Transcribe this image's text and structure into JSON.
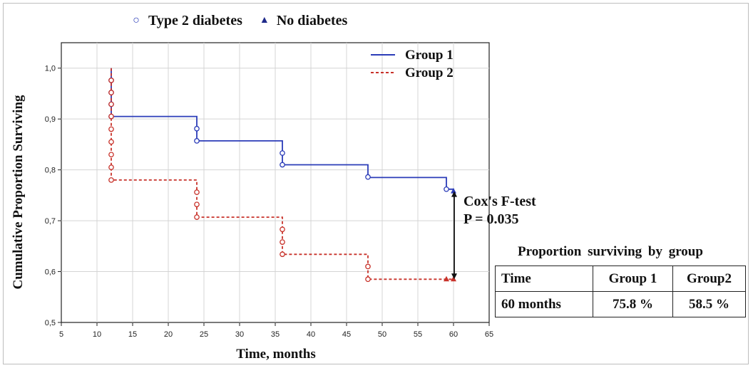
{
  "legend": {
    "markers": [
      {
        "symbol": "○",
        "label": "Type 2 diabetes",
        "icon": "open-circle-icon"
      },
      {
        "symbol": "▲",
        "label": "No diabetes",
        "icon": "filled-triangle-icon"
      }
    ],
    "groups": [
      {
        "label": "Group 1",
        "color": "#2b3cb8",
        "style": "solid"
      },
      {
        "label": "Group 2",
        "color": "#c8322a",
        "style": "dashed"
      }
    ]
  },
  "annotation": {
    "test_label": "Cox's F-test",
    "p_value": "P = 0.035"
  },
  "summary": {
    "title": "Proportion surviving by group",
    "header": [
      "Time",
      "Group 1",
      "Group2"
    ],
    "rows": [
      [
        "60 months",
        "75.8 %",
        "58.5 %"
      ]
    ]
  },
  "chart_data": {
    "type": "line",
    "title": "",
    "xlabel": "Time, months",
    "ylabel": "Cumulative Proportion Surviving",
    "xlim": [
      5,
      65
    ],
    "ylim": [
      0.5,
      1.05
    ],
    "xticks": [
      5,
      10,
      15,
      20,
      25,
      30,
      35,
      40,
      45,
      50,
      55,
      60,
      65
    ],
    "yticks": [
      0.5,
      0.6,
      0.7,
      0.8,
      0.9,
      1.0
    ],
    "ytick_labels": [
      "0,5",
      "0,6",
      "0,7",
      "0,8",
      "0,9",
      "1,0"
    ],
    "grid": true,
    "legend_position": "top-right",
    "series": [
      {
        "name": "Group 1",
        "color": "#2b3cb8",
        "style": "solid",
        "steps": [
          [
            12,
            1.0
          ],
          [
            12,
            0.905
          ],
          [
            24,
            0.905
          ],
          [
            24,
            0.857
          ],
          [
            36,
            0.857
          ],
          [
            36,
            0.81
          ],
          [
            48,
            0.81
          ],
          [
            48,
            0.785
          ],
          [
            59,
            0.785
          ],
          [
            59,
            0.762
          ],
          [
            60,
            0.762
          ],
          [
            60,
            0.758
          ]
        ],
        "censored_circles": [
          [
            12,
            0.976
          ],
          [
            12,
            0.952
          ],
          [
            12,
            0.929
          ],
          [
            12,
            0.905
          ],
          [
            24,
            0.881
          ],
          [
            24,
            0.857
          ],
          [
            36,
            0.833
          ],
          [
            36,
            0.81
          ],
          [
            48,
            0.786
          ],
          [
            59,
            0.762
          ]
        ],
        "triangles": [
          [
            60,
            0.758
          ]
        ]
      },
      {
        "name": "Group 2",
        "color": "#c8322a",
        "style": "dashed",
        "steps": [
          [
            12,
            1.0
          ],
          [
            12,
            0.78
          ],
          [
            24,
            0.78
          ],
          [
            24,
            0.707
          ],
          [
            36,
            0.707
          ],
          [
            36,
            0.634
          ],
          [
            48,
            0.634
          ],
          [
            48,
            0.585
          ],
          [
            60,
            0.585
          ]
        ],
        "censored_circles": [
          [
            12,
            0.976
          ],
          [
            12,
            0.952
          ],
          [
            12,
            0.929
          ],
          [
            12,
            0.905
          ],
          [
            12,
            0.88
          ],
          [
            12,
            0.855
          ],
          [
            12,
            0.83
          ],
          [
            12,
            0.805
          ],
          [
            12,
            0.78
          ],
          [
            24,
            0.756
          ],
          [
            24,
            0.732
          ],
          [
            24,
            0.707
          ],
          [
            36,
            0.683
          ],
          [
            36,
            0.658
          ],
          [
            36,
            0.634
          ],
          [
            48,
            0.61
          ],
          [
            48,
            0.585
          ]
        ],
        "triangles": [
          [
            59,
            0.585
          ],
          [
            60,
            0.585
          ]
        ]
      }
    ],
    "comparison_arrow": {
      "x": 60,
      "from": 0.758,
      "to": 0.585
    }
  }
}
